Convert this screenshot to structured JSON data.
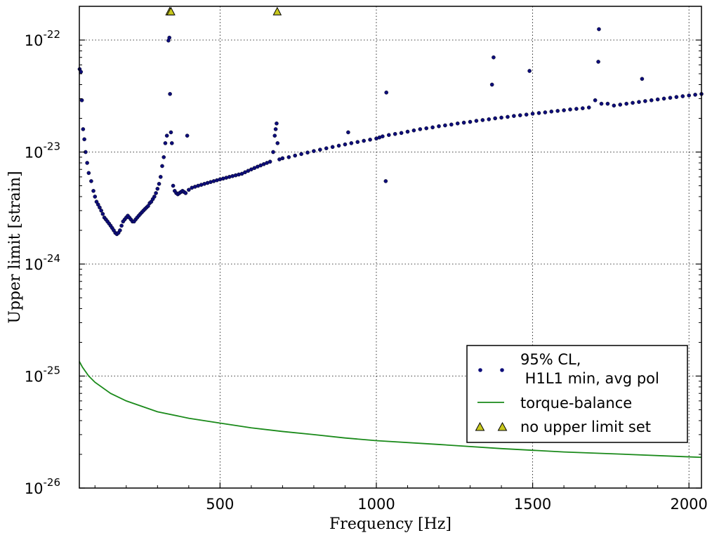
{
  "chart_data": {
    "type": "scatter",
    "title": "",
    "xlabel": "Frequency [Hz]",
    "ylabel": "Upper limit [strain]",
    "xscale": "linear",
    "yscale": "log",
    "xlim": [
      50,
      2040
    ],
    "ylim": [
      1e-26,
      2e-22
    ],
    "grid": true,
    "legend_position": "bottom-right",
    "x_ticks": [
      {
        "value": 500,
        "label": "500"
      },
      {
        "value": 1000,
        "label": "1000"
      },
      {
        "value": 1500,
        "label": "1500"
      },
      {
        "value": 2000,
        "label": "2000"
      }
    ],
    "y_ticks": [
      {
        "value": 1e-26,
        "base": "10",
        "exponent": "-26"
      },
      {
        "value": 1e-25,
        "base": "10",
        "exponent": "-25"
      },
      {
        "value": 1e-24,
        "base": "10",
        "exponent": "-24"
      },
      {
        "value": 1e-23,
        "base": "10",
        "exponent": "-23"
      },
      {
        "value": 1e-22,
        "base": "10",
        "exponent": "-22"
      }
    ],
    "series": [
      {
        "name": "95% CL,\n H1L1 min, avg pol",
        "legend_lines": [
          "95% CL,",
          " H1L1 min, avg pol"
        ],
        "kind": "scatter",
        "color": "#0d0d7a",
        "points": [
          [
            51,
            5.5e-23
          ],
          [
            55,
            5.2e-23
          ],
          [
            58,
            2.9e-23
          ],
          [
            62,
            1.6e-23
          ],
          [
            66,
            1.3e-23
          ],
          [
            70,
            1e-23
          ],
          [
            75,
            8e-24
          ],
          [
            80,
            6.5e-24
          ],
          [
            88,
            5.5e-24
          ],
          [
            95,
            4.5e-24
          ],
          [
            100,
            4e-24
          ],
          [
            105,
            3.6e-24
          ],
          [
            110,
            3.4e-24
          ],
          [
            115,
            3.2e-24
          ],
          [
            120,
            3e-24
          ],
          [
            125,
            2.8e-24
          ],
          [
            130,
            2.6e-24
          ],
          [
            135,
            2.5e-24
          ],
          [
            140,
            2.4e-24
          ],
          [
            145,
            2.3e-24
          ],
          [
            150,
            2.2e-24
          ],
          [
            155,
            2.1e-24
          ],
          [
            160,
            2e-24
          ],
          [
            165,
            1.9e-24
          ],
          [
            170,
            1.85e-24
          ],
          [
            175,
            1.9e-24
          ],
          [
            180,
            2e-24
          ],
          [
            185,
            2.2e-24
          ],
          [
            190,
            2.4e-24
          ],
          [
            195,
            2.5e-24
          ],
          [
            200,
            2.6e-24
          ],
          [
            205,
            2.7e-24
          ],
          [
            210,
            2.6e-24
          ],
          [
            215,
            2.5e-24
          ],
          [
            220,
            2.4e-24
          ],
          [
            225,
            2.4e-24
          ],
          [
            230,
            2.5e-24
          ],
          [
            235,
            2.6e-24
          ],
          [
            240,
            2.7e-24
          ],
          [
            245,
            2.8e-24
          ],
          [
            250,
            2.9e-24
          ],
          [
            255,
            3e-24
          ],
          [
            260,
            3.1e-24
          ],
          [
            265,
            3.2e-24
          ],
          [
            270,
            3.3e-24
          ],
          [
            275,
            3.5e-24
          ],
          [
            280,
            3.6e-24
          ],
          [
            285,
            3.8e-24
          ],
          [
            290,
            4e-24
          ],
          [
            295,
            4.3e-24
          ],
          [
            300,
            4.7e-24
          ],
          [
            305,
            5.2e-24
          ],
          [
            310,
            6e-24
          ],
          [
            315,
            7.5e-24
          ],
          [
            320,
            9e-24
          ],
          [
            325,
            1.2e-23
          ],
          [
            330,
            1.4e-23
          ],
          [
            335,
            9.9e-23
          ],
          [
            338,
            1.05e-22
          ],
          [
            340,
            3.3e-23
          ],
          [
            343,
            1.5e-23
          ],
          [
            346,
            1.2e-23
          ],
          [
            350,
            5e-24
          ],
          [
            355,
            4.5e-24
          ],
          [
            360,
            4.3e-24
          ],
          [
            365,
            4.2e-24
          ],
          [
            370,
            4.3e-24
          ],
          [
            375,
            4.4e-24
          ],
          [
            380,
            4.5e-24
          ],
          [
            385,
            4.4e-24
          ],
          [
            390,
            4.3e-24
          ],
          [
            395,
            1.4e-23
          ],
          [
            400,
            4.6e-24
          ],
          [
            410,
            4.8e-24
          ],
          [
            420,
            4.9e-24
          ],
          [
            430,
            5e-24
          ],
          [
            440,
            5.1e-24
          ],
          [
            450,
            5.2e-24
          ],
          [
            460,
            5.3e-24
          ],
          [
            470,
            5.4e-24
          ],
          [
            480,
            5.5e-24
          ],
          [
            490,
            5.6e-24
          ],
          [
            500,
            5.7e-24
          ],
          [
            510,
            5.8e-24
          ],
          [
            520,
            5.9e-24
          ],
          [
            530,
            6e-24
          ],
          [
            540,
            6.1e-24
          ],
          [
            550,
            6.2e-24
          ],
          [
            560,
            6.3e-24
          ],
          [
            570,
            6.4e-24
          ],
          [
            580,
            6.6e-24
          ],
          [
            590,
            6.8e-24
          ],
          [
            600,
            7e-24
          ],
          [
            610,
            7.2e-24
          ],
          [
            620,
            7.4e-24
          ],
          [
            630,
            7.6e-24
          ],
          [
            640,
            7.8e-24
          ],
          [
            650,
            8e-24
          ],
          [
            660,
            8.2e-24
          ],
          [
            670,
            1e-23
          ],
          [
            675,
            1.4e-23
          ],
          [
            678,
            1.6e-23
          ],
          [
            681,
            1.8e-23
          ],
          [
            684,
            1.2e-23
          ],
          [
            690,
            8.6e-24
          ],
          [
            700,
            8.8e-24
          ],
          [
            720,
            9e-24
          ],
          [
            740,
            9.3e-24
          ],
          [
            760,
            9.6e-24
          ],
          [
            780,
            9.9e-24
          ],
          [
            800,
            1.02e-23
          ],
          [
            820,
            1.05e-23
          ],
          [
            840,
            1.08e-23
          ],
          [
            860,
            1.11e-23
          ],
          [
            880,
            1.14e-23
          ],
          [
            900,
            1.17e-23
          ],
          [
            910,
            1.5e-23
          ],
          [
            920,
            1.2e-23
          ],
          [
            940,
            1.23e-23
          ],
          [
            960,
            1.26e-23
          ],
          [
            980,
            1.29e-23
          ],
          [
            1000,
            1.32e-23
          ],
          [
            1010,
            1.35e-23
          ],
          [
            1020,
            1.38e-23
          ],
          [
            1030,
            5.5e-24
          ],
          [
            1032,
            3.4e-23
          ],
          [
            1040,
            1.42e-23
          ],
          [
            1060,
            1.45e-23
          ],
          [
            1080,
            1.48e-23
          ],
          [
            1100,
            1.52e-23
          ],
          [
            1120,
            1.56e-23
          ],
          [
            1140,
            1.6e-23
          ],
          [
            1160,
            1.63e-23
          ],
          [
            1180,
            1.66e-23
          ],
          [
            1200,
            1.7e-23
          ],
          [
            1220,
            1.73e-23
          ],
          [
            1240,
            1.76e-23
          ],
          [
            1260,
            1.8e-23
          ],
          [
            1280,
            1.83e-23
          ],
          [
            1300,
            1.86e-23
          ],
          [
            1320,
            1.9e-23
          ],
          [
            1340,
            1.93e-23
          ],
          [
            1360,
            1.96e-23
          ],
          [
            1370,
            4e-23
          ],
          [
            1375,
            7e-23
          ],
          [
            1380,
            2e-23
          ],
          [
            1400,
            2.03e-23
          ],
          [
            1420,
            2.06e-23
          ],
          [
            1440,
            2.1e-23
          ],
          [
            1460,
            2.13e-23
          ],
          [
            1480,
            2.16e-23
          ],
          [
            1490,
            5.3e-23
          ],
          [
            1500,
            2.2e-23
          ],
          [
            1520,
            2.23e-23
          ],
          [
            1540,
            2.26e-23
          ],
          [
            1560,
            2.3e-23
          ],
          [
            1580,
            2.33e-23
          ],
          [
            1600,
            2.36e-23
          ],
          [
            1620,
            2.4e-23
          ],
          [
            1640,
            2.43e-23
          ],
          [
            1660,
            2.46e-23
          ],
          [
            1680,
            2.5e-23
          ],
          [
            1700,
            2.9e-23
          ],
          [
            1710,
            6.4e-23
          ],
          [
            1712,
            1.25e-22
          ],
          [
            1720,
            2.7e-23
          ],
          [
            1740,
            2.7e-23
          ],
          [
            1760,
            2.6e-23
          ],
          [
            1780,
            2.65e-23
          ],
          [
            1800,
            2.7e-23
          ],
          [
            1820,
            2.75e-23
          ],
          [
            1840,
            2.8e-23
          ],
          [
            1850,
            4.5e-23
          ],
          [
            1860,
            2.85e-23
          ],
          [
            1880,
            2.9e-23
          ],
          [
            1900,
            2.95e-23
          ],
          [
            1920,
            3e-23
          ],
          [
            1940,
            3.05e-23
          ],
          [
            1960,
            3.1e-23
          ],
          [
            1980,
            3.15e-23
          ],
          [
            2000,
            3.2e-23
          ],
          [
            2020,
            3.25e-23
          ],
          [
            2040,
            3.3e-23
          ]
        ]
      },
      {
        "name": "torque-balance",
        "kind": "line",
        "color": "#1a8a1a",
        "points": [
          [
            50,
            1.35e-25
          ],
          [
            60,
            1.2e-25
          ],
          [
            80,
            1e-25
          ],
          [
            100,
            8.8e-26
          ],
          [
            150,
            7e-26
          ],
          [
            200,
            6e-26
          ],
          [
            300,
            4.8e-26
          ],
          [
            400,
            4.2e-26
          ],
          [
            500,
            3.8e-26
          ],
          [
            600,
            3.45e-26
          ],
          [
            700,
            3.2e-26
          ],
          [
            800,
            3e-26
          ],
          [
            900,
            2.8e-26
          ],
          [
            1000,
            2.65e-26
          ],
          [
            1200,
            2.45e-26
          ],
          [
            1400,
            2.25e-26
          ],
          [
            1600,
            2.1e-26
          ],
          [
            1800,
            2e-26
          ],
          [
            2000,
            1.9e-26
          ],
          [
            2040,
            1.88e-26
          ]
        ]
      },
      {
        "name": "no upper limit set",
        "kind": "marker",
        "marker": "triangle",
        "color": "#c8c81e",
        "points": [
          [
            339,
            1.8e-22
          ],
          [
            343,
            1.8e-22
          ],
          [
            683,
            1.8e-22
          ]
        ]
      }
    ]
  }
}
